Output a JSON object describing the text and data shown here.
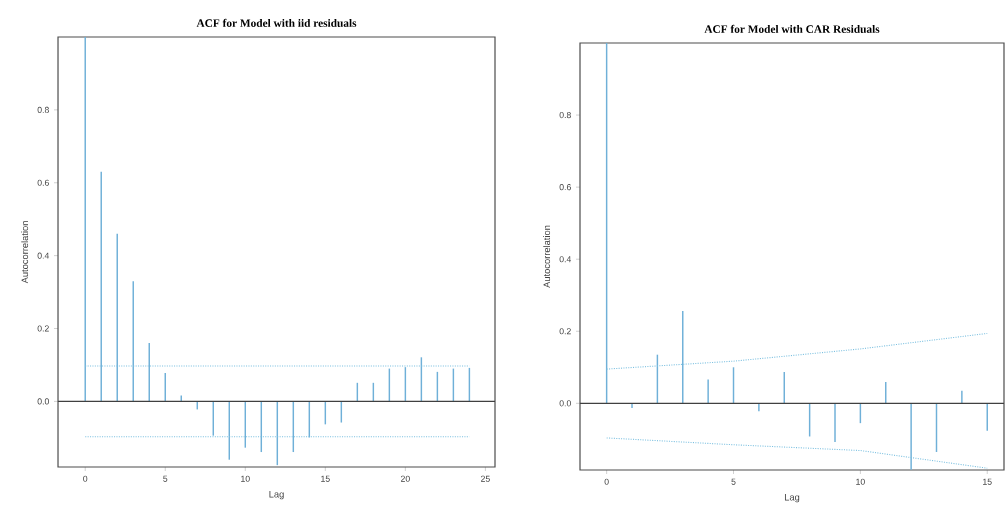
{
  "chart_data": [
    {
      "type": "bar",
      "title": "ACF for Model with iid residuals",
      "xlabel": "Lag",
      "ylabel": "Autocorrelation",
      "x": [
        0,
        1,
        2,
        3,
        4,
        5,
        6,
        7,
        8,
        9,
        10,
        11,
        12,
        13,
        14,
        15,
        16,
        17,
        18,
        19,
        20,
        21,
        22,
        23,
        24
      ],
      "series": [
        {
          "color": "#6fb0d8",
          "values": [
            1.0,
            0.63,
            0.46,
            0.33,
            0.16,
            0.078,
            0.016,
            -0.022,
            -0.094,
            -0.16,
            -0.127,
            -0.139,
            -0.175,
            -0.139,
            -0.099,
            -0.063,
            -0.058,
            0.051,
            0.051,
            0.09,
            0.094,
            0.121,
            0.081,
            0.09,
            0.092
          ]
        },
        {
          "type": "line",
          "color": "#7cc0e0",
          "line_style": "dotted",
          "x": [
            0,
            24
          ],
          "values": [
            0.097,
            0.097
          ]
        },
        {
          "type": "line",
          "color": "#7cc0e0",
          "line_style": "dotted",
          "x": [
            0,
            24
          ],
          "values": [
            -0.097,
            -0.097
          ]
        }
      ],
      "ref_lines": [
        {
          "axis": "y",
          "value": 0,
          "color": "#404040"
        }
      ],
      "xlim": [
        -1.7,
        25.6
      ],
      "ylim": [
        -0.18,
        1.0
      ],
      "xticks": [
        0,
        5,
        10,
        15,
        20,
        25
      ],
      "yticks": [
        {
          "value": 0,
          "label": "0.0"
        },
        {
          "value": 0.2,
          "label": "0.2"
        },
        {
          "value": 0.4,
          "label": "0.4"
        },
        {
          "value": 0.6,
          "label": "0.6"
        },
        {
          "value": 0.8,
          "label": "0.8"
        }
      ]
    },
    {
      "type": "bar",
      "title": "ACF for Model with CAR Residuals",
      "xlabel": "Lag",
      "ylabel": "Autocorrelation",
      "x": [
        0,
        1,
        2,
        3,
        4,
        5,
        6,
        7,
        8,
        9,
        10,
        11,
        12,
        13,
        14,
        15
      ],
      "series": [
        {
          "color": "#6fb0d8",
          "values": [
            1.0,
            -0.013,
            0.135,
            0.256,
            0.066,
            0.1,
            -0.022,
            0.087,
            -0.092,
            -0.107,
            -0.055,
            0.059,
            -0.184,
            -0.135,
            0.035,
            -0.076
          ]
        },
        {
          "type": "line",
          "color": "#7cc0e0",
          "line_style": "dotted",
          "x": [
            0,
            5,
            10,
            15
          ],
          "values": [
            0.095,
            0.117,
            0.151,
            0.194
          ]
        },
        {
          "type": "line",
          "color": "#7cc0e0",
          "line_style": "dotted",
          "x": [
            0,
            5,
            10,
            15
          ],
          "values": [
            -0.096,
            -0.115,
            -0.131,
            -0.18
          ]
        }
      ],
      "ref_lines": [
        {
          "axis": "y",
          "value": 0,
          "color": "#404040"
        }
      ],
      "xlim": [
        -1.05,
        15.66
      ],
      "ylim": [
        -0.185,
        1.0
      ],
      "xticks": [
        0,
        5,
        10,
        15
      ],
      "yticks": [
        {
          "value": 0,
          "label": "0.0"
        },
        {
          "value": 0.2,
          "label": "0.2"
        },
        {
          "value": 0.4,
          "label": "0.4"
        },
        {
          "value": 0.6,
          "label": "0.6"
        },
        {
          "value": 0.8,
          "label": "0.8"
        }
      ]
    }
  ]
}
